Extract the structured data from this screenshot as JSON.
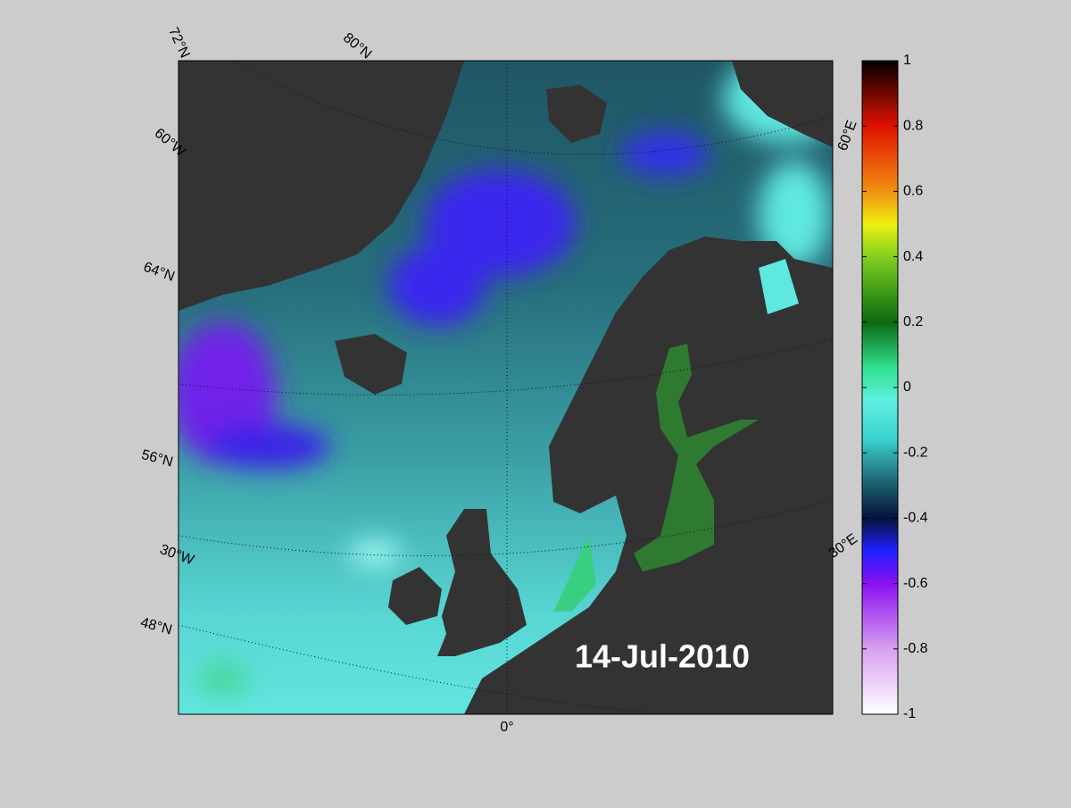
{
  "map": {
    "date": "14-Jul-2010",
    "labels": [
      "72°N",
      "80°N",
      "60°W",
      "64°N",
      "56°N",
      "30°W",
      "48°N",
      "0°",
      "30°E",
      "60°E"
    ]
  },
  "colorbar": {
    "lim": [
      -1,
      1
    ],
    "ticks": [
      1,
      0.8,
      0.6,
      0.4,
      0.2,
      0,
      -0.2,
      -0.4,
      -0.6,
      -0.8,
      -1
    ]
  }
}
